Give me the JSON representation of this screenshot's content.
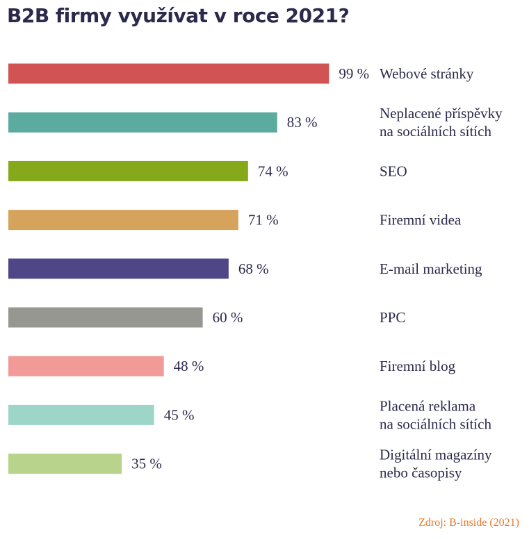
{
  "title": "B2B firmy využívat v roce 2021?",
  "source": "Zdroj: B-inside (2021)",
  "chart_data": {
    "type": "bar",
    "orientation": "horizontal",
    "title": "B2B firmy využívat v roce 2021?",
    "unit": "%",
    "grid": false,
    "categories": [
      [
        "Webové stránky"
      ],
      [
        "Neplacené příspěvky",
        "na sociálních sítích"
      ],
      [
        "SEO"
      ],
      [
        "Firemní videa"
      ],
      [
        "E-mail marketing"
      ],
      [
        "PPC"
      ],
      [
        "Firemní blog"
      ],
      [
        "Placená reklama",
        "na sociálních sítích"
      ],
      [
        "Digitální magazíny",
        "nebo časopisy"
      ]
    ],
    "values": [
      99,
      83,
      74,
      71,
      68,
      60,
      48,
      45,
      35
    ],
    "value_labels": [
      "99 %",
      "83 %",
      "74 %",
      "71 %",
      "68 %",
      "60 %",
      "48 %",
      "45 %",
      "35 %"
    ],
    "colors": [
      "#d25353",
      "#5bab9e",
      "#86a91c",
      "#d5a35c",
      "#4f4688",
      "#979792",
      "#f19a98",
      "#9ed5c9",
      "#b8d38a"
    ]
  }
}
